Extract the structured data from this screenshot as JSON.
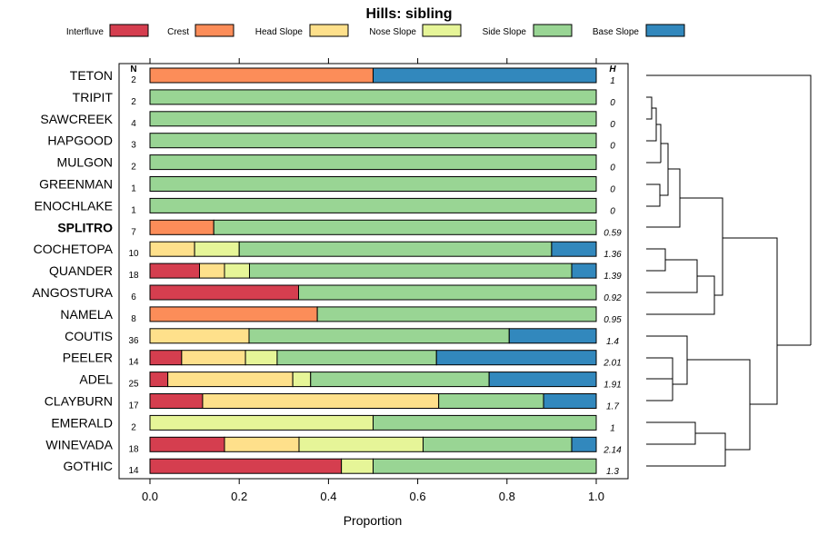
{
  "chart_data": {
    "type": "stacked-bar-horizontal",
    "title": "Hills: sibling",
    "xlabel": "Proportion",
    "xlim": [
      0,
      1
    ],
    "x_ticks": [
      "0.0",
      "0.2",
      "0.4",
      "0.6",
      "0.8",
      "1.0"
    ],
    "x_tick_values": [
      0,
      0.2,
      0.4,
      0.6,
      0.8,
      1.0
    ],
    "n_header": "N",
    "h_header": "H",
    "categories": [
      {
        "name": "Interfluve",
        "color": "#d53e4f"
      },
      {
        "name": "Crest",
        "color": "#fc8d59"
      },
      {
        "name": "Head Slope",
        "color": "#fee08b"
      },
      {
        "name": "Nose Slope",
        "color": "#e6f598"
      },
      {
        "name": "Side Slope",
        "color": "#99d594"
      },
      {
        "name": "Base Slope",
        "color": "#3288bd"
      }
    ],
    "rows": [
      {
        "label": "TETON",
        "n": "2",
        "h": "1",
        "bold": false,
        "values": [
          0,
          0.5,
          0,
          0,
          0,
          0.5
        ]
      },
      {
        "label": "TRIPIT",
        "n": "2",
        "h": "0",
        "bold": false,
        "values": [
          0,
          0,
          0,
          0,
          1,
          0
        ]
      },
      {
        "label": "SAWCREEK",
        "n": "4",
        "h": "0",
        "bold": false,
        "values": [
          0,
          0,
          0,
          0,
          1,
          0
        ]
      },
      {
        "label": "HAPGOOD",
        "n": "3",
        "h": "0",
        "bold": false,
        "values": [
          0,
          0,
          0,
          0,
          1,
          0
        ]
      },
      {
        "label": "MULGON",
        "n": "2",
        "h": "0",
        "bold": false,
        "values": [
          0,
          0,
          0,
          0,
          1,
          0
        ]
      },
      {
        "label": "GREENMAN",
        "n": "1",
        "h": "0",
        "bold": false,
        "values": [
          0,
          0,
          0,
          0,
          1,
          0
        ]
      },
      {
        "label": "ENOCHLAKE",
        "n": "1",
        "h": "0",
        "bold": false,
        "values": [
          0,
          0,
          0,
          0,
          1,
          0
        ]
      },
      {
        "label": "SPLITRO",
        "n": "7",
        "h": "0.59",
        "bold": true,
        "values": [
          0,
          0.143,
          0,
          0,
          0.857,
          0
        ]
      },
      {
        "label": "COCHETOPA",
        "n": "10",
        "h": "1.36",
        "bold": false,
        "values": [
          0,
          0,
          0.1,
          0.1,
          0.7,
          0.1
        ]
      },
      {
        "label": "QUANDER",
        "n": "18",
        "h": "1.39",
        "bold": false,
        "values": [
          0.111,
          0,
          0.056,
          0.056,
          0.722,
          0.055
        ]
      },
      {
        "label": "ANGOSTURA",
        "n": "6",
        "h": "0.92",
        "bold": false,
        "values": [
          0.333,
          0,
          0,
          0,
          0.667,
          0
        ]
      },
      {
        "label": "NAMELA",
        "n": "8",
        "h": "0.95",
        "bold": false,
        "values": [
          0,
          0.375,
          0,
          0,
          0.625,
          0
        ]
      },
      {
        "label": "COUTIS",
        "n": "36",
        "h": "1.4",
        "bold": false,
        "values": [
          0,
          0,
          0.222,
          0,
          0.583,
          0.195
        ]
      },
      {
        "label": "PEELER",
        "n": "14",
        "h": "2.01",
        "bold": false,
        "values": [
          0.071,
          0,
          0.143,
          0.071,
          0.357,
          0.358
        ]
      },
      {
        "label": "ADEL",
        "n": "25",
        "h": "1.91",
        "bold": false,
        "values": [
          0.04,
          0,
          0.28,
          0.04,
          0.4,
          0.24
        ]
      },
      {
        "label": "CLAYBURN",
        "n": "17",
        "h": "1.7",
        "bold": false,
        "values": [
          0.118,
          0,
          0.529,
          0,
          0.235,
          0.118
        ]
      },
      {
        "label": "EMERALD",
        "n": "2",
        "h": "1",
        "bold": false,
        "values": [
          0,
          0,
          0,
          0.5,
          0.5,
          0
        ]
      },
      {
        "label": "WINEVADA",
        "n": "18",
        "h": "2.14",
        "bold": false,
        "values": [
          0.167,
          0,
          0.167,
          0.278,
          0.333,
          0.055
        ]
      },
      {
        "label": "GOTHIC",
        "n": "14",
        "h": "1.3",
        "bold": false,
        "values": [
          0.429,
          0,
          0,
          0.071,
          0.5,
          0
        ]
      }
    ]
  }
}
